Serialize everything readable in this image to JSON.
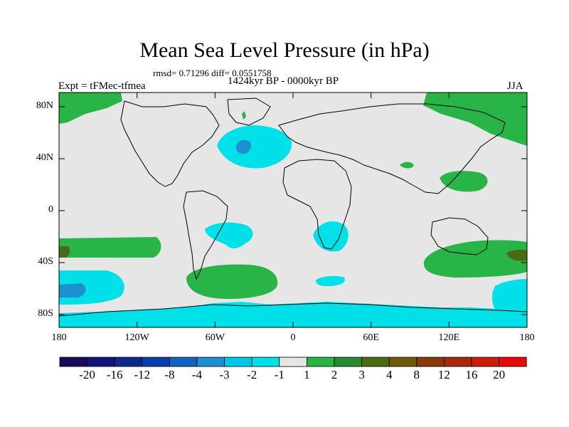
{
  "title": "Mean Sea Level Pressure (in hPa)",
  "stats": "rmsd= 0.71296 diff= 0.0551758",
  "period": "1424kyr BP - 0000kyr BP",
  "experiment": "Expt = tFMec-tfmea",
  "season": "JJA",
  "axes": {
    "y_ticks": [
      "80N",
      "40N",
      "0",
      "40S",
      "80S"
    ],
    "x_ticks": [
      "180",
      "120W",
      "60W",
      "0",
      "60E",
      "120E",
      "180"
    ]
  },
  "colorbar": {
    "labels": [
      "-20",
      "-16",
      "-12",
      "-8",
      "-4",
      "-3",
      "-2",
      "-1",
      "1",
      "2",
      "3",
      "4",
      "8",
      "12",
      "16",
      "20"
    ],
    "colors": [
      "#1a0a5a",
      "#14147a",
      "#0a2a8c",
      "#0a3ea8",
      "#1462c0",
      "#1e90d0",
      "#00c8e6",
      "#00e0e8",
      "#e6e6e6",
      "#28b446",
      "#2a8c32",
      "#4a6a14",
      "#6a5a0a",
      "#8a3a0a",
      "#a8280a",
      "#c81e0a",
      "#e60a0a"
    ]
  },
  "colors": {
    "background": "#e6e6e6",
    "positive": "#28b446",
    "positive_strong": "#4a6a14",
    "negative": "#00e0e8",
    "negative_strong": "#1e90d0",
    "coast": "#000000"
  }
}
